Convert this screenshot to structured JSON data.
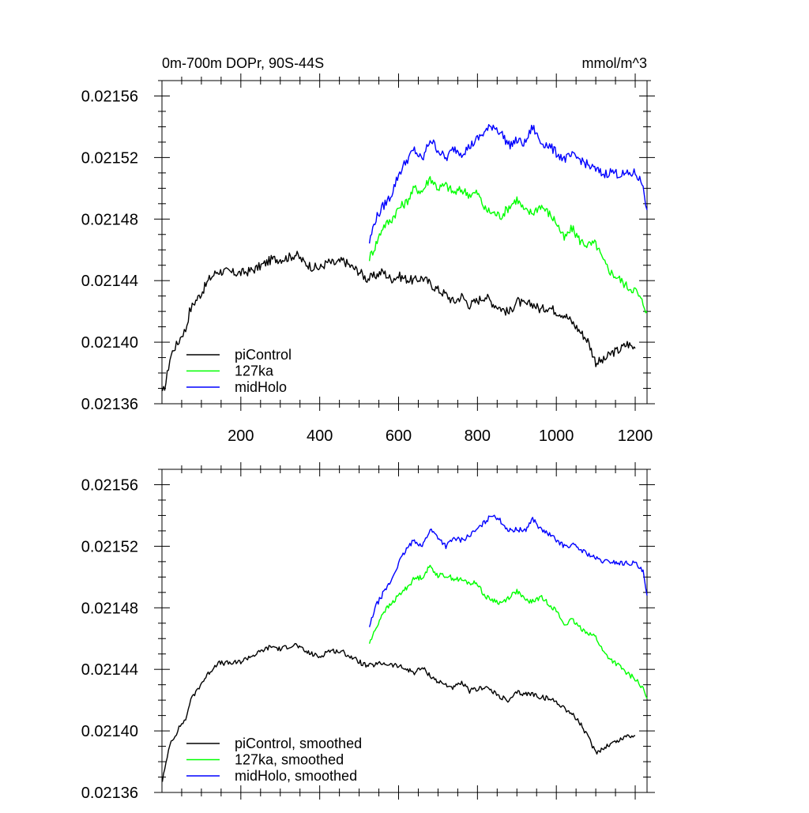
{
  "chart_data": [
    {
      "type": "line",
      "title_left": "0m-700m DOPr, 90S-44S",
      "title_right": "mmol/m^3",
      "xlim": [
        0,
        1230
      ],
      "ylim": [
        0.02136,
        0.02157
      ],
      "xticks": [
        200,
        400,
        600,
        800,
        1000,
        1200
      ],
      "xtick_labels": [
        "200",
        "400",
        "600",
        "800",
        "1000",
        "1200"
      ],
      "yticks": [
        0.02136,
        0.0214,
        0.02144,
        0.02148,
        0.02152,
        0.02156
      ],
      "ytick_labels": [
        "0.02136",
        "0.02140",
        "0.02144",
        "0.02148",
        "0.02152",
        "0.02156"
      ],
      "legend_position": "bottom-left",
      "series": [
        {
          "name": "piControl",
          "color": "#000000",
          "x": [
            1,
            10,
            20,
            30,
            40,
            50,
            60,
            70,
            80,
            100,
            120,
            140,
            160,
            180,
            200,
            220,
            240,
            260,
            280,
            300,
            320,
            340,
            360,
            380,
            400,
            420,
            440,
            460,
            480,
            500,
            520,
            540,
            560,
            580,
            600,
            620,
            640,
            660,
            680,
            700,
            720,
            740,
            760,
            780,
            800,
            820,
            840,
            860,
            880,
            900,
            920,
            940,
            960,
            980,
            1000,
            1020,
            1040,
            1060,
            1080,
            1100,
            1120,
            1140,
            1160,
            1180,
            1200
          ],
          "y": [
            0.021366,
            0.021374,
            0.021389,
            0.021396,
            0.021399,
            0.021405,
            0.021408,
            0.02142,
            0.021425,
            0.021432,
            0.021441,
            0.021446,
            0.021446,
            0.021445,
            0.021445,
            0.021446,
            0.021448,
            0.021451,
            0.021454,
            0.021454,
            0.021455,
            0.021457,
            0.021452,
            0.021449,
            0.021448,
            0.021452,
            0.021451,
            0.021453,
            0.021449,
            0.021446,
            0.021441,
            0.021443,
            0.021446,
            0.021441,
            0.021443,
            0.021441,
            0.02144,
            0.021442,
            0.021438,
            0.021434,
            0.021431,
            0.021426,
            0.02143,
            0.021424,
            0.021427,
            0.02143,
            0.021425,
            0.021422,
            0.021419,
            0.021427,
            0.021424,
            0.021425,
            0.021421,
            0.021423,
            0.02142,
            0.021418,
            0.021413,
            0.021407,
            0.021401,
            0.021387,
            0.021388,
            0.021393,
            0.021395,
            0.021399,
            0.021396
          ]
        },
        {
          "name": "127ka",
          "color": "#00ff00",
          "x": [
            526,
            540,
            560,
            580,
            600,
            620,
            640,
            660,
            680,
            700,
            720,
            740,
            760,
            780,
            800,
            820,
            840,
            860,
            880,
            900,
            920,
            940,
            960,
            980,
            1000,
            1020,
            1040,
            1060,
            1080,
            1100,
            1120,
            1140,
            1160,
            1180,
            1200,
            1220,
            1230
          ],
          "y": [
            0.021455,
            0.021462,
            0.021475,
            0.021479,
            0.021487,
            0.021491,
            0.0215,
            0.021498,
            0.021507,
            0.0215,
            0.021502,
            0.021497,
            0.021499,
            0.021496,
            0.021497,
            0.021486,
            0.021484,
            0.021482,
            0.021488,
            0.021493,
            0.021485,
            0.021484,
            0.021489,
            0.021484,
            0.021478,
            0.021467,
            0.021474,
            0.021466,
            0.021463,
            0.021464,
            0.021452,
            0.021445,
            0.021441,
            0.021436,
            0.021434,
            0.021425,
            0.02142
          ]
        },
        {
          "name": "midHolo",
          "color": "#0000ff",
          "x": [
            526,
            540,
            560,
            580,
            600,
            620,
            640,
            660,
            680,
            700,
            720,
            740,
            760,
            780,
            800,
            820,
            840,
            860,
            880,
            900,
            920,
            940,
            960,
            980,
            1000,
            1020,
            1040,
            1060,
            1080,
            1100,
            1120,
            1140,
            1160,
            1180,
            1200,
            1220,
            1230
          ],
          "y": [
            0.021465,
            0.021479,
            0.021488,
            0.021495,
            0.021509,
            0.021518,
            0.021525,
            0.021518,
            0.021532,
            0.021525,
            0.021519,
            0.021526,
            0.021523,
            0.021527,
            0.021532,
            0.021537,
            0.021541,
            0.021536,
            0.021528,
            0.021531,
            0.021529,
            0.02154,
            0.02153,
            0.021528,
            0.021523,
            0.021519,
            0.021521,
            0.021519,
            0.021515,
            0.021512,
            0.021509,
            0.021511,
            0.021509,
            0.021509,
            0.02151,
            0.021502,
            0.021486
          ]
        }
      ]
    },
    {
      "type": "line",
      "xlim": [
        0,
        1230
      ],
      "ylim": [
        0.02136,
        0.02157
      ],
      "xticks": [
        200,
        400,
        600,
        800,
        1000,
        1200
      ],
      "yticks": [
        0.02136,
        0.0214,
        0.02144,
        0.02148,
        0.02152,
        0.02156
      ],
      "ytick_labels": [
        "0.02136",
        "0.02140",
        "0.02144",
        "0.02148",
        "0.02152",
        "0.02156"
      ],
      "legend_position": "bottom-left",
      "series": [
        {
          "name": "piControl, smoothed",
          "color": "#000000",
          "x": [
            1,
            10,
            20,
            30,
            40,
            50,
            60,
            70,
            80,
            100,
            120,
            140,
            160,
            180,
            200,
            220,
            240,
            260,
            280,
            300,
            320,
            340,
            360,
            380,
            400,
            420,
            440,
            460,
            480,
            500,
            520,
            540,
            560,
            580,
            600,
            620,
            640,
            660,
            680,
            700,
            720,
            740,
            760,
            780,
            800,
            820,
            840,
            860,
            880,
            900,
            920,
            940,
            960,
            980,
            1000,
            1020,
            1040,
            1060,
            1080,
            1100,
            1120,
            1140,
            1160,
            1180,
            1200
          ],
          "y": [
            0.021368,
            0.021378,
            0.021392,
            0.021396,
            0.0214,
            0.021405,
            0.021407,
            0.021418,
            0.021423,
            0.021431,
            0.021438,
            0.021444,
            0.021444,
            0.021444,
            0.021445,
            0.021448,
            0.02145,
            0.021453,
            0.021455,
            0.021453,
            0.021455,
            0.021456,
            0.021452,
            0.02145,
            0.021448,
            0.021452,
            0.021452,
            0.021451,
            0.021448,
            0.021445,
            0.021442,
            0.021443,
            0.021444,
            0.021443,
            0.021442,
            0.02144,
            0.021438,
            0.021441,
            0.021436,
            0.021432,
            0.02143,
            0.021428,
            0.021431,
            0.021426,
            0.021427,
            0.021429,
            0.021425,
            0.021422,
            0.021419,
            0.021425,
            0.021424,
            0.021424,
            0.021422,
            0.021421,
            0.021419,
            0.021415,
            0.021411,
            0.021405,
            0.021396,
            0.021386,
            0.021389,
            0.021392,
            0.021394,
            0.021397,
            0.021397
          ]
        },
        {
          "name": "127ka, smoothed",
          "color": "#00ff00",
          "x": [
            526,
            540,
            560,
            580,
            600,
            620,
            640,
            660,
            680,
            700,
            720,
            740,
            760,
            780,
            800,
            820,
            840,
            860,
            880,
            900,
            920,
            940,
            960,
            980,
            1000,
            1020,
            1040,
            1060,
            1080,
            1100,
            1120,
            1140,
            1160,
            1180,
            1200,
            1220,
            1230
          ],
          "y": [
            0.021457,
            0.021465,
            0.021477,
            0.021482,
            0.021488,
            0.021493,
            0.021499,
            0.0215,
            0.021507,
            0.021501,
            0.021501,
            0.021499,
            0.021498,
            0.021496,
            0.021496,
            0.021487,
            0.021485,
            0.021483,
            0.021487,
            0.021491,
            0.021485,
            0.021484,
            0.021487,
            0.021483,
            0.021478,
            0.021469,
            0.021472,
            0.021467,
            0.021464,
            0.021461,
            0.021451,
            0.021446,
            0.021442,
            0.021437,
            0.021434,
            0.021427,
            0.021421
          ]
        },
        {
          "name": "midHolo, smoothed",
          "color": "#0000ff",
          "x": [
            526,
            540,
            560,
            580,
            600,
            620,
            640,
            660,
            680,
            700,
            720,
            740,
            760,
            780,
            800,
            820,
            840,
            860,
            880,
            900,
            920,
            940,
            960,
            980,
            1000,
            1020,
            1040,
            1060,
            1080,
            1100,
            1120,
            1140,
            1160,
            1180,
            1200,
            1220,
            1230
          ],
          "y": [
            0.021467,
            0.02148,
            0.021489,
            0.021497,
            0.021509,
            0.021518,
            0.021524,
            0.02152,
            0.021531,
            0.021526,
            0.02152,
            0.021525,
            0.021524,
            0.021527,
            0.021531,
            0.021536,
            0.021541,
            0.021536,
            0.02153,
            0.021531,
            0.02153,
            0.021538,
            0.021531,
            0.021528,
            0.021524,
            0.02152,
            0.021521,
            0.021518,
            0.021515,
            0.021512,
            0.02151,
            0.02151,
            0.021509,
            0.021509,
            0.021509,
            0.021503,
            0.021488
          ]
        }
      ]
    }
  ]
}
